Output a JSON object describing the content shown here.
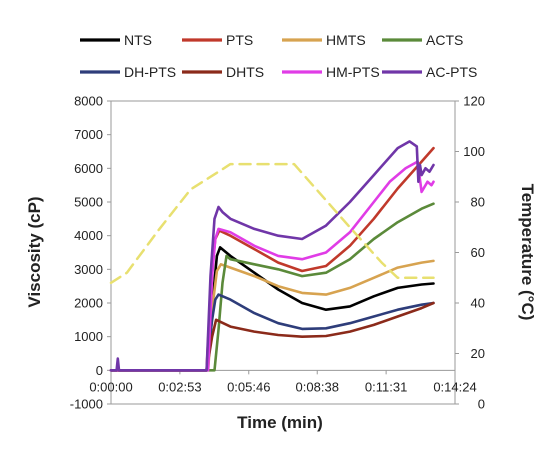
{
  "chart_data": {
    "type": "line",
    "xlabel": "Time (min)",
    "ylabel": "Viscosity (cP)",
    "y2label": "Temperature (°C)",
    "x_ticks": [
      "0:00:00",
      "0:02:53",
      "0:05:46",
      "0:08:38",
      "0:11:31",
      "0:14:24"
    ],
    "x_tick_seconds": [
      0,
      173,
      346,
      518,
      691,
      864
    ],
    "xlim_seconds": [
      0,
      864
    ],
    "ylim": [
      -1000,
      8000
    ],
    "y_ticks": [
      "-1000",
      "0",
      "1000",
      "2000",
      "3000",
      "4000",
      "5000",
      "6000",
      "7000",
      "8000"
    ],
    "y_tick_values": [
      -1000,
      0,
      1000,
      2000,
      3000,
      4000,
      5000,
      6000,
      7000,
      8000
    ],
    "y2lim": [
      0,
      120
    ],
    "y2_ticks": [
      "0",
      "20",
      "40",
      "60",
      "80",
      "100",
      "120"
    ],
    "y2_tick_values": [
      0,
      20,
      40,
      60,
      80,
      100,
      120
    ],
    "legend_position": "top",
    "series": [
      {
        "name": "NTS",
        "color": "#000000",
        "axis": "left",
        "x": [
          0,
          240,
          258,
          266,
          274,
          300,
          360,
          420,
          480,
          540,
          600,
          660,
          720,
          780,
          810
        ],
        "y": [
          0,
          0,
          2400,
          3400,
          3650,
          3400,
          2900,
          2400,
          2000,
          1800,
          1900,
          2200,
          2450,
          2550,
          2580
        ]
      },
      {
        "name": "PTS",
        "color": "#c0392b",
        "axis": "left",
        "x": [
          0,
          240,
          252,
          262,
          272,
          300,
          360,
          420,
          480,
          540,
          600,
          660,
          720,
          780,
          810
        ],
        "y": [
          0,
          0,
          2800,
          3900,
          4150,
          4000,
          3600,
          3200,
          2950,
          3100,
          3700,
          4500,
          5400,
          6200,
          6600
        ]
      },
      {
        "name": "HMTS",
        "color": "#d7a350",
        "axis": "left",
        "x": [
          0,
          244,
          256,
          266,
          276,
          300,
          360,
          420,
          480,
          540,
          600,
          660,
          720,
          780,
          810
        ],
        "y": [
          0,
          0,
          2000,
          2950,
          3150,
          3050,
          2800,
          2500,
          2300,
          2250,
          2450,
          2750,
          3050,
          3200,
          3250
        ]
      },
      {
        "name": "ACTS",
        "color": "#5b8a3a",
        "axis": "left",
        "x": [
          0,
          260,
          270,
          280,
          290,
          300,
          360,
          420,
          480,
          540,
          600,
          660,
          720,
          780,
          810
        ],
        "y": [
          0,
          0,
          1200,
          2600,
          3400,
          3300,
          3150,
          3000,
          2800,
          2900,
          3300,
          3900,
          4400,
          4800,
          4950
        ]
      },
      {
        "name": "DH-PTS",
        "color": "#2e3d7a",
        "axis": "left",
        "x": [
          0,
          240,
          254,
          262,
          270,
          300,
          360,
          420,
          480,
          540,
          600,
          660,
          720,
          780,
          810
        ],
        "y": [
          0,
          0,
          1500,
          2100,
          2250,
          2100,
          1700,
          1400,
          1230,
          1250,
          1400,
          1600,
          1800,
          1950,
          2000
        ]
      },
      {
        "name": "DHTS",
        "color": "#8b2a1a",
        "axis": "left",
        "x": [
          0,
          240,
          254,
          264,
          300,
          360,
          420,
          480,
          540,
          600,
          660,
          720,
          780,
          810
        ],
        "y": [
          0,
          0,
          1000,
          1500,
          1300,
          1150,
          1050,
          1000,
          1020,
          1150,
          1350,
          1600,
          1850,
          2000
        ]
      },
      {
        "name": "HM-PTS",
        "color": "#e03ce6",
        "axis": "left",
        "x": [
          0,
          244,
          254,
          262,
          270,
          300,
          360,
          420,
          480,
          540,
          600,
          660,
          700,
          740,
          770,
          780,
          795,
          805,
          810
        ],
        "y": [
          0,
          0,
          2800,
          3900,
          4200,
          4100,
          3700,
          3400,
          3300,
          3500,
          4100,
          5000,
          5600,
          6000,
          6200,
          5300,
          5600,
          5500,
          5600
        ]
      },
      {
        "name": "AC-PTS",
        "color": "#7036a8",
        "axis": "left",
        "x": [
          0,
          14,
          17,
          20,
          240,
          250,
          260,
          270,
          280,
          300,
          360,
          420,
          480,
          540,
          600,
          660,
          720,
          750,
          768,
          772,
          776,
          780,
          790,
          800,
          810
        ],
        "y": [
          0,
          0,
          350,
          0,
          0,
          2800,
          4500,
          4850,
          4700,
          4500,
          4200,
          4000,
          3900,
          4300,
          5000,
          5800,
          6600,
          6800,
          6650,
          5600,
          6100,
          5800,
          6000,
          5900,
          6100
        ]
      },
      {
        "name": "Temperature",
        "color": "#e8e070",
        "axis": "right",
        "dashed": true,
        "x": [
          0,
          40,
          120,
          200,
          280,
          300,
          460,
          600,
          680,
          720,
          780,
          810
        ],
        "y": [
          48,
          52,
          69,
          85,
          93,
          95,
          95,
          70,
          56,
          50,
          50,
          50
        ]
      }
    ]
  }
}
